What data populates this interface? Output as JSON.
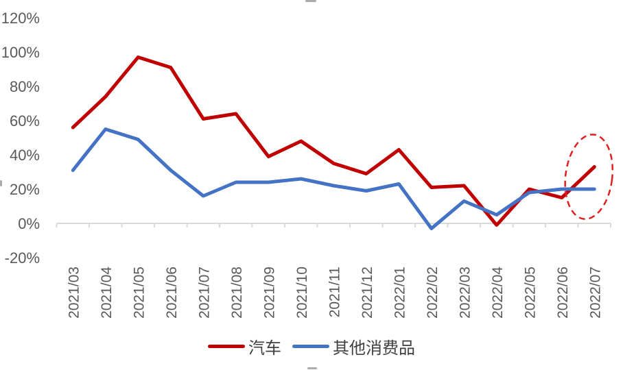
{
  "chart_data": {
    "type": "line",
    "title": "",
    "categories": [
      "2021/03",
      "2021/04",
      "2021/05",
      "2021/06",
      "2021/07",
      "2021/08",
      "2021/09",
      "2021/10",
      "2021/11",
      "2021/12",
      "2022/01",
      "2022/02",
      "2022/03",
      "2022/04",
      "2022/05",
      "2022/06",
      "2022/07"
    ],
    "series": [
      {
        "name": "汽车",
        "color": "#c00000",
        "values": [
          56,
          74,
          97,
          91,
          61,
          64,
          39,
          48,
          35,
          29,
          43,
          21,
          22,
          -1,
          20,
          15,
          33
        ]
      },
      {
        "name": "其他消费品",
        "color": "#4472c4",
        "values": [
          31,
          55,
          49,
          31,
          16,
          24,
          24,
          26,
          22,
          19,
          23,
          -3,
          13,
          5,
          18,
          20,
          20
        ]
      }
    ],
    "y_ticks": [
      {
        "label": "120%",
        "value": 120
      },
      {
        "label": "100%",
        "value": 100
      },
      {
        "label": "80%",
        "value": 80
      },
      {
        "label": "60%",
        "value": 60
      },
      {
        "label": "40%",
        "value": 40
      },
      {
        "label": "20%",
        "value": 20
      },
      {
        "label": "0%",
        "value": 0
      },
      {
        "label": "-20%",
        "value": -20
      }
    ],
    "ylim": [
      -20,
      120
    ],
    "unit": "%",
    "grid": false,
    "legend_position": "bottom",
    "axis_color": "#d9d9d9",
    "tick_label_color": "#595959",
    "annotation": {
      "shape": "ellipse",
      "style": "dashed",
      "color": "#e02020",
      "x_category": "2022/07",
      "highlights_series": "汽车"
    }
  },
  "legend": {
    "items": [
      {
        "label": "汽车",
        "color": "#c00000"
      },
      {
        "label": "其他消费品",
        "color": "#4472c4"
      }
    ]
  }
}
